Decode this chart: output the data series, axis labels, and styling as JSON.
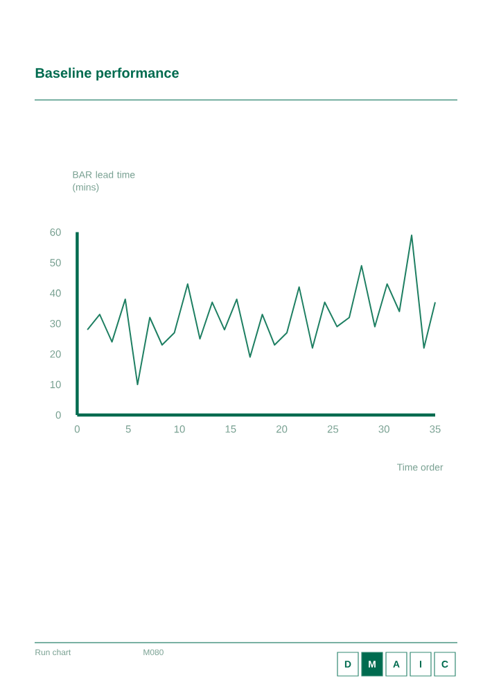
{
  "chart_data": {
    "type": "line",
    "title": "Baseline performance",
    "xlabel": "Time order",
    "ylabel": "BAR lead time (mins)",
    "annotations": [
      "Run chart",
      "M080",
      "D",
      "M",
      "A",
      "I",
      "C"
    ],
    "x": [
      1.0,
      2.2,
      3.4,
      4.7,
      5.9,
      7.1,
      8.3,
      9.5,
      10.8,
      12.0,
      13.2,
      14.4,
      15.6,
      16.9,
      18.1,
      19.3,
      20.5,
      21.7,
      23.0,
      24.2,
      25.4,
      26.6,
      27.8,
      29.1,
      30.3,
      31.5,
      32.7,
      33.9,
      35.0
    ],
    "values": [
      28,
      33,
      24,
      38,
      10,
      32,
      23,
      27,
      43,
      25,
      37,
      28,
      38,
      19,
      33,
      23,
      27,
      42,
      22,
      37,
      29,
      32,
      49,
      29,
      43,
      34,
      59,
      22,
      37
    ],
    "color": "#1e7f62",
    "line_style": "solid",
    "xlim": [
      0,
      35
    ],
    "ylim": [
      0,
      60
    ],
    "xticks": [
      0,
      5,
      10,
      15,
      20,
      25,
      30,
      35
    ],
    "yticks": [
      0,
      10,
      20,
      30,
      40,
      50,
      60
    ]
  }
}
